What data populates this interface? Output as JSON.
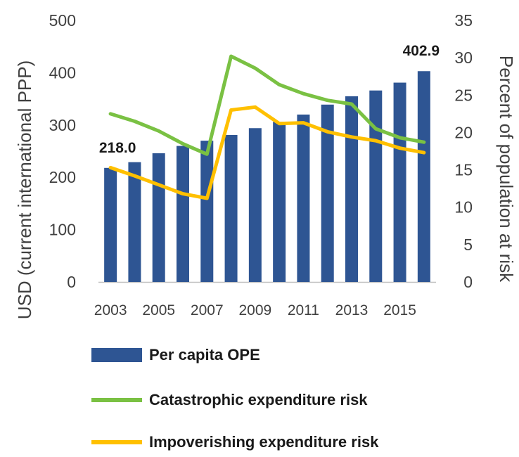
{
  "chart_data": {
    "type": "bar+line",
    "x": [
      "2003",
      "2004",
      "2005",
      "2006",
      "2007",
      "2008",
      "2009",
      "2010",
      "2011",
      "2012",
      "2013",
      "2014",
      "2015",
      "2016"
    ],
    "x_tick_labels": [
      "2003",
      "2005",
      "2007",
      "2009",
      "2011",
      "2013",
      "2015"
    ],
    "y_left": {
      "label": "USD (current international PPP)",
      "lim": [
        0,
        500
      ],
      "ticks": [
        0,
        100,
        200,
        300,
        400,
        500
      ]
    },
    "y_right": {
      "label": "Percent of population at risk",
      "lim": [
        0,
        35
      ],
      "ticks": [
        0,
        5,
        10,
        15,
        20,
        25,
        30,
        35
      ]
    },
    "series": [
      {
        "name": "Per capita OPE",
        "type": "bar",
        "axis": "left",
        "color": "#2e5593",
        "values": [
          218.0,
          229,
          246,
          260,
          270,
          281,
          294,
          306,
          320,
          339,
          355,
          366,
          381,
          402.9
        ]
      },
      {
        "name": "Catastrophic expenditure risk",
        "type": "line",
        "axis": "right",
        "color": "#7ac143",
        "values": [
          22.5,
          21.5,
          20.2,
          18.5,
          17.1,
          30.2,
          28.6,
          26.4,
          25.2,
          24.3,
          23.8,
          20.5,
          19.3,
          18.7
        ]
      },
      {
        "name": "Impoverishing expenditure risk",
        "type": "line",
        "axis": "right",
        "color": "#ffc000",
        "values": [
          15.3,
          14.2,
          13.0,
          11.8,
          11.2,
          23.0,
          23.4,
          21.2,
          21.3,
          20.1,
          19.4,
          18.9,
          17.9,
          17.3
        ]
      }
    ],
    "annotations": [
      {
        "text": "218.0",
        "index": 0
      },
      {
        "text": "402.9",
        "index": 13
      }
    ],
    "grid": false,
    "legend_position": "bottom"
  }
}
